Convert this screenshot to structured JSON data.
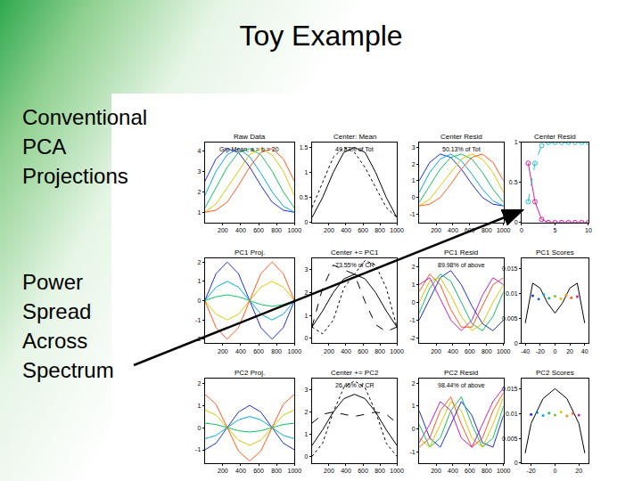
{
  "slide": {
    "title": "Toy Example",
    "text_blocks": [
      [
        "Conventional",
        "PCA",
        "Projections"
      ],
      [
        "Power",
        "Spread",
        "Across",
        "Spectrum"
      ]
    ]
  },
  "chart_data": [
    {
      "type": "line",
      "title": "Raw Data",
      "x": [
        0,
        125,
        250,
        375,
        500,
        625,
        750,
        875,
        1000
      ],
      "xlim": [
        0,
        1000
      ],
      "xticks": [
        200,
        400,
        600,
        800,
        1000
      ],
      "ylim": [
        0.5,
        4.4
      ],
      "yticks": [
        1,
        2,
        3,
        4
      ],
      "annotations": [
        "Grp Mean, a = b = 20"
      ],
      "series": [
        {
          "color": "#1f2fd0",
          "values": [
            2.5,
            3.6,
            4.1,
            3.9,
            3.2,
            2.3,
            1.5,
            1.1,
            1.0
          ]
        },
        {
          "color": "#00a8f0",
          "values": [
            1.8,
            3.0,
            3.8,
            4.1,
            3.7,
            2.9,
            2.0,
            1.3,
            1.0
          ]
        },
        {
          "color": "#10c060",
          "values": [
            1.2,
            2.2,
            3.2,
            3.9,
            4.1,
            3.8,
            3.0,
            2.0,
            1.2
          ]
        },
        {
          "color": "#d8c800",
          "values": [
            1.0,
            1.4,
            2.2,
            3.0,
            3.8,
            4.1,
            3.8,
            3.0,
            1.8
          ]
        },
        {
          "color": "#ff5a1a",
          "values": [
            1.0,
            1.1,
            1.5,
            2.3,
            3.2,
            3.9,
            4.1,
            3.6,
            2.5
          ]
        }
      ]
    },
    {
      "type": "line",
      "title": "Center: Mean",
      "x": [
        0,
        125,
        250,
        375,
        500,
        625,
        750,
        875,
        1000
      ],
      "xlim": [
        0,
        1000
      ],
      "xticks": [
        200,
        400,
        600,
        800,
        1000
      ],
      "ylim": [
        0,
        1.6
      ],
      "yticks": [
        0,
        0.5,
        1,
        1.5
      ],
      "annotations": [
        "49.87% of Tot"
      ],
      "series": [
        {
          "color": "#000000",
          "line_style": "solid",
          "values": [
            0.1,
            0.5,
            1.0,
            1.4,
            1.5,
            1.4,
            1.0,
            0.5,
            0.1
          ]
        },
        {
          "color": "#000000",
          "line_style": "dot",
          "values": [
            0.3,
            0.8,
            1.3,
            1.5,
            1.4,
            1.1,
            0.7,
            0.3,
            0.1
          ]
        }
      ]
    },
    {
      "type": "line",
      "title": "Center Resid",
      "x": [
        0,
        125,
        250,
        375,
        500,
        625,
        750,
        875,
        1000
      ],
      "xlim": [
        0,
        1000
      ],
      "xticks": [
        200,
        400,
        600,
        800,
        1000
      ],
      "ylim": [
        -1.5,
        3.3
      ],
      "yticks": [
        -1,
        0,
        1,
        2,
        3
      ],
      "annotations": [
        "50.13% of Tot"
      ],
      "series": [
        {
          "color": "#1f2fd0",
          "values": [
            1.0,
            2.1,
            2.6,
            2.4,
            1.7,
            0.8,
            0.0,
            -0.4,
            -0.5
          ]
        },
        {
          "color": "#00a8f0",
          "values": [
            0.3,
            1.5,
            2.3,
            2.6,
            2.2,
            1.4,
            0.5,
            -0.2,
            -0.5
          ]
        },
        {
          "color": "#10c060",
          "values": [
            -0.3,
            0.7,
            1.7,
            2.4,
            2.6,
            2.3,
            1.5,
            0.5,
            -0.3
          ]
        },
        {
          "color": "#d8c800",
          "values": [
            -0.5,
            -0.1,
            0.7,
            1.5,
            2.3,
            2.6,
            2.3,
            1.5,
            0.3
          ]
        },
        {
          "color": "#ff5a1a",
          "values": [
            -0.5,
            -0.4,
            0.0,
            0.8,
            1.7,
            2.4,
            2.6,
            2.1,
            1.0
          ]
        }
      ]
    },
    {
      "type": "line",
      "title": "Center Resid",
      "x": [
        1,
        2,
        3,
        4,
        5,
        6,
        7,
        8,
        9,
        10
      ],
      "xlim": [
        0,
        10
      ],
      "xticks": [
        0,
        5,
        10
      ],
      "ylim": [
        0,
        1
      ],
      "yticks": [
        0,
        0.5,
        1
      ],
      "annotations": [],
      "series": [
        {
          "color": "#d020a0",
          "marker": "circle",
          "line_style": "solid",
          "values": [
            0.74,
            0.26,
            0.04,
            0,
            0,
            0,
            0,
            0,
            0,
            0
          ]
        },
        {
          "color": "#20c0d0",
          "marker": "circle",
          "line_style": "dash",
          "values": [
            0.26,
            0.74,
            0.96,
            1,
            1,
            1,
            1,
            1,
            1,
            1
          ]
        }
      ]
    },
    {
      "type": "line",
      "title": "PC1 Proj.",
      "x": [
        0,
        125,
        250,
        375,
        500,
        625,
        750,
        875,
        1000
      ],
      "xlim": [
        0,
        1000
      ],
      "xticks": [
        200,
        400,
        600,
        800,
        1000
      ],
      "ylim": [
        -2.2,
        2.2
      ],
      "yticks": [
        -2,
        -1,
        0,
        1,
        2
      ],
      "annotations": [],
      "series": [
        {
          "color": "#1f2fd0",
          "values": [
            0,
            1.4,
            2.0,
            1.4,
            0,
            -1.4,
            -2.0,
            -1.4,
            0
          ]
        },
        {
          "color": "#00a8f0",
          "values": [
            0,
            0.7,
            1.0,
            0.7,
            0,
            -0.7,
            -1.0,
            -0.7,
            0
          ]
        },
        {
          "color": "#10c060",
          "values": [
            0,
            0.2,
            0.3,
            0.2,
            0,
            -0.2,
            -0.3,
            -0.2,
            0
          ]
        },
        {
          "color": "#d8c800",
          "values": [
            0,
            -0.7,
            -1.0,
            -0.7,
            0,
            0.7,
            1.0,
            0.7,
            0
          ]
        },
        {
          "color": "#ff5a1a",
          "values": [
            0,
            -1.4,
            -2.0,
            -1.4,
            0,
            1.4,
            2.0,
            1.4,
            0
          ]
        }
      ]
    },
    {
      "type": "line",
      "title": "Center += PC1",
      "x": [
        0,
        125,
        250,
        375,
        500,
        625,
        750,
        875,
        1000
      ],
      "xlim": [
        0,
        1000
      ],
      "xticks": [
        200,
        400,
        600,
        800,
        1000
      ],
      "ylim": [
        -0.2,
        3.5
      ],
      "yticks": [
        0,
        1,
        2,
        3
      ],
      "annotations": [
        "73.55% of CR"
      ],
      "series": [
        {
          "color": "#000000",
          "line_style": "solid",
          "values": [
            0.5,
            1.2,
            2.0,
            2.6,
            2.8,
            2.6,
            2.0,
            1.2,
            0.5
          ]
        },
        {
          "color": "#000000",
          "line_style": "dash",
          "values": [
            0.5,
            2.2,
            3.2,
            3.0,
            2.8,
            1.6,
            0.6,
            0.3,
            0.5
          ]
        },
        {
          "color": "#000000",
          "line_style": "dot",
          "values": [
            0.5,
            0.2,
            0.8,
            2.2,
            2.8,
            3.4,
            3.2,
            2.2,
            0.5
          ]
        }
      ]
    },
    {
      "type": "line",
      "title": "PC1 Resid",
      "x": [
        0,
        125,
        250,
        375,
        500,
        625,
        750,
        875,
        1000
      ],
      "xlim": [
        0,
        1000
      ],
      "xticks": [
        200,
        400,
        600,
        800,
        1000
      ],
      "ylim": [
        -2.3,
        2.5
      ],
      "yticks": [
        -2,
        -1,
        0,
        1,
        2
      ],
      "annotations": [
        "89.98% of above"
      ],
      "series": [
        {
          "color": "#1f2fd0",
          "values": [
            -1.0,
            0.2,
            1.4,
            1.8,
            1.0,
            -0.2,
            -1.2,
            -1.6,
            -1.0
          ]
        },
        {
          "color": "#10c060",
          "values": [
            -0.6,
            0.8,
            1.6,
            1.2,
            0.0,
            -1.2,
            -1.6,
            -0.8,
            0.6
          ]
        },
        {
          "color": "#d8c800",
          "values": [
            0.0,
            1.2,
            1.4,
            0.4,
            -0.8,
            -1.6,
            -1.2,
            0.0,
            1.0
          ]
        },
        {
          "color": "#ff5a1a",
          "values": [
            0.6,
            1.6,
            1.0,
            -0.4,
            -1.4,
            -1.4,
            -0.2,
            1.0,
            1.4
          ]
        },
        {
          "color": "#c020c0",
          "values": [
            1.0,
            1.4,
            0.2,
            -1.0,
            -1.6,
            -1.0,
            0.4,
            1.4,
            1.0
          ]
        }
      ]
    },
    {
      "type": "line",
      "title": "PC1 Scores",
      "x": [
        -40,
        -30,
        -20,
        -10,
        0,
        10,
        20,
        30,
        40
      ],
      "xlim": [
        -45,
        45
      ],
      "xticks": [
        -40,
        -20,
        0,
        20,
        40
      ],
      "ylim": [
        0,
        0.017
      ],
      "yticks": [
        0,
        0.005,
        0.01,
        0.015
      ],
      "annotations": [],
      "series": [
        {
          "color": "#000000",
          "values": [
            0.004,
            0.012,
            0.011,
            0.008,
            0.006,
            0.008,
            0.011,
            0.012,
            0.004
          ]
        },
        {
          "type": "scatter",
          "x": [
            -30,
            -22,
            -15,
            -8,
            0,
            8,
            15,
            22,
            30
          ],
          "values": [
            0.0095,
            0.0088,
            0.0097,
            0.009,
            0.0094,
            0.0089,
            0.0096,
            0.0091,
            0.0093
          ],
          "colors": [
            "#1f2fd0",
            "#0070e0",
            "#00a8f0",
            "#10c060",
            "#80c020",
            "#d8c800",
            "#ff9010",
            "#ff5a1a",
            "#c020c0"
          ]
        }
      ]
    },
    {
      "type": "line",
      "title": "PC2 Proj.",
      "x": [
        0,
        125,
        250,
        375,
        500,
        625,
        750,
        875,
        1000
      ],
      "xlim": [
        0,
        1000
      ],
      "xticks": [
        200,
        400,
        600,
        800,
        1000
      ],
      "ylim": [
        -1.6,
        2.2
      ],
      "yticks": [
        -1,
        0,
        1,
        2
      ],
      "annotations": [],
      "series": [
        {
          "color": "#1f2fd0",
          "values": [
            -1.0,
            -0.7,
            0,
            0.7,
            1.0,
            0.7,
            0,
            -0.7,
            -1.0
          ]
        },
        {
          "color": "#00a8f0",
          "values": [
            -0.5,
            -0.35,
            0,
            0.35,
            0.5,
            0.35,
            0,
            -0.35,
            -0.5
          ]
        },
        {
          "color": "#10c060",
          "values": [
            0.2,
            0.14,
            0,
            -0.14,
            -0.2,
            -0.14,
            0,
            0.14,
            0.2
          ]
        },
        {
          "color": "#d8c800",
          "values": [
            0.8,
            0.56,
            0,
            -0.56,
            -0.8,
            -0.56,
            0,
            0.56,
            0.8
          ]
        },
        {
          "color": "#ff5a1a",
          "values": [
            1.5,
            1.05,
            0,
            -1.05,
            -1.5,
            -1.05,
            0,
            1.05,
            1.5
          ]
        }
      ]
    },
    {
      "type": "line",
      "title": "Center += PC2",
      "x": [
        0,
        125,
        250,
        375,
        500,
        625,
        750,
        875,
        1000
      ],
      "xlim": [
        0,
        1000
      ],
      "xticks": [
        200,
        400,
        600,
        800,
        1000
      ],
      "ylim": [
        -0.3,
        3.5
      ],
      "yticks": [
        0,
        1,
        2,
        3
      ],
      "annotations": [
        "26.45% of CR"
      ],
      "series": [
        {
          "color": "#000000",
          "line_style": "solid",
          "values": [
            0.5,
            1.2,
            2.0,
            2.6,
            2.8,
            2.6,
            2.0,
            1.2,
            0.5
          ]
        },
        {
          "color": "#000000",
          "line_style": "dash",
          "values": [
            1.5,
            1.9,
            2.0,
            1.9,
            1.8,
            1.9,
            2.0,
            1.9,
            1.5
          ]
        },
        {
          "color": "#000000",
          "line_style": "dot",
          "values": [
            0.0,
            0.6,
            2.0,
            3.1,
            3.4,
            3.1,
            2.0,
            0.6,
            0.0
          ]
        }
      ]
    },
    {
      "type": "line",
      "title": "PC2 Resid",
      "x": [
        0,
        125,
        250,
        375,
        500,
        625,
        750,
        875,
        1000
      ],
      "xlim": [
        0,
        1000
      ],
      "xticks": [
        200,
        400,
        600,
        800,
        1000
      ],
      "ylim": [
        -1.5,
        2.2
      ],
      "yticks": [
        -1,
        0,
        1,
        2
      ],
      "annotations": [
        "98.44% of above"
      ],
      "series": [
        {
          "color": "#1f2fd0",
          "values": [
            0.8,
            -0.4,
            -0.8,
            0.2,
            1.2,
            0.6,
            -0.6,
            -0.8,
            0.6
          ]
        },
        {
          "color": "#10c060",
          "values": [
            0.2,
            -0.8,
            -0.4,
            0.8,
            1.4,
            0.2,
            -0.8,
            -0.4,
            1.0
          ]
        },
        {
          "color": "#d8c800",
          "values": [
            -0.4,
            -0.8,
            0.2,
            1.2,
            0.8,
            -0.4,
            -0.8,
            0.2,
            1.4
          ]
        },
        {
          "color": "#ff5a1a",
          "values": [
            -0.8,
            -0.4,
            0.8,
            1.4,
            0.2,
            -0.8,
            -0.4,
            0.8,
            1.6
          ]
        },
        {
          "color": "#c020c0",
          "values": [
            -0.6,
            0.2,
            1.2,
            0.8,
            -0.4,
            -0.8,
            0.2,
            1.2,
            1.8
          ]
        }
      ]
    },
    {
      "type": "line",
      "title": "PC2 Scores",
      "x": [
        -25,
        -20,
        -10,
        0,
        10,
        20,
        25
      ],
      "xlim": [
        -28,
        28
      ],
      "xticks": [
        -20,
        0,
        20
      ],
      "ylim": [
        0,
        0.017
      ],
      "yticks": [
        0,
        0.005,
        0.01,
        0.015
      ],
      "annotations": [],
      "series": [
        {
          "color": "#000000",
          "values": [
            0.002,
            0.008,
            0.013,
            0.015,
            0.013,
            0.008,
            0.002
          ]
        },
        {
          "type": "scatter",
          "x": [
            -20,
            -15,
            -10,
            -5,
            0,
            5,
            10,
            15,
            20
          ],
          "values": [
            0.0098,
            0.0102,
            0.0096,
            0.0101,
            0.0097,
            0.0103,
            0.0095,
            0.01,
            0.0097
          ],
          "colors": [
            "#1f2fd0",
            "#0070e0",
            "#00a8f0",
            "#10c060",
            "#80c020",
            "#d8c800",
            "#ff9010",
            "#ff5a1a",
            "#c020c0"
          ]
        }
      ]
    }
  ]
}
